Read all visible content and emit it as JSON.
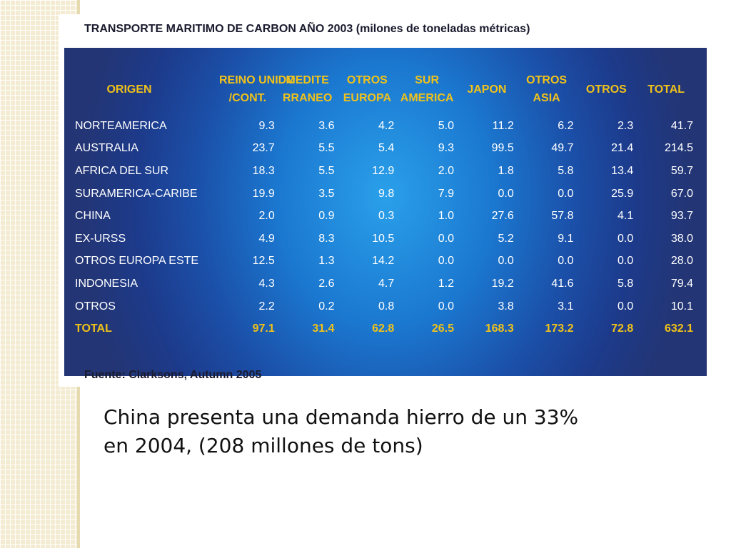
{
  "figure": {
    "title": "TRANSPORTE MARITIMO DE CARBON AÑO 2003 (milones de toneladas métricas)",
    "source": "Fuente: Clarksons, Autumn 2005"
  },
  "table": {
    "headers": [
      [
        "ORIGEN"
      ],
      [
        "REINO UNIDO",
        "/CONT."
      ],
      [
        "MEDITE",
        "RRANEO"
      ],
      [
        "OTROS",
        "EUROPA"
      ],
      [
        "SUR",
        "AMERICA"
      ],
      [
        "JAPON"
      ],
      [
        "OTROS",
        "ASIA"
      ],
      [
        "OTROS"
      ],
      [
        "TOTAL"
      ]
    ],
    "rows": [
      [
        "NORTEAMERICA",
        "9.3",
        "3.6",
        "4.2",
        "5.0",
        "11.2",
        "6.2",
        "2.3",
        "41.7"
      ],
      [
        "AUSTRALIA",
        "23.7",
        "5.5",
        "5.4",
        "9.3",
        "99.5",
        "49.7",
        "21.4",
        "214.5"
      ],
      [
        "AFRICA DEL SUR",
        "18.3",
        "5.5",
        "12.9",
        "2.0",
        "1.8",
        "5.8",
        "13.4",
        "59.7"
      ],
      [
        "SURAMERICA-CARIBE",
        "19.9",
        "3.5",
        "9.8",
        "7.9",
        "0.0",
        "0.0",
        "25.9",
        "67.0"
      ],
      [
        "CHINA",
        "2.0",
        "0.9",
        "0.3",
        "1.0",
        "27.6",
        "57.8",
        "4.1",
        "93.7"
      ],
      [
        "EX-URSS",
        "4.9",
        "8.3",
        "10.5",
        "0.0",
        "5.2",
        "9.1",
        "0.0",
        "38.0"
      ],
      [
        "OTROS EUROPA ESTE",
        "12.5",
        "1.3",
        "14.2",
        "0.0",
        "0.0",
        "0.0",
        "0.0",
        "28.0"
      ],
      [
        "INDONESIA",
        "4.3",
        "2.6",
        "4.7",
        "1.2",
        "19.2",
        "41.6",
        "5.8",
        "79.4"
      ],
      [
        "OTROS",
        "2.2",
        "0.2",
        "0.8",
        "0.0",
        "3.8",
        "3.1",
        "0.0",
        "10.1"
      ],
      [
        "TOTAL",
        "97.1",
        "31.4",
        "62.8",
        "26.5",
        "168.3",
        "173.2",
        "72.8",
        "632.1"
      ]
    ]
  },
  "body": {
    "lines": [
      "China presenta una demanda hierro de un 33%",
      "en 2004, (208 millones de tons)"
    ]
  },
  "colors": {
    "header_text": "#f0c21a",
    "cell_text": "#ffffff",
    "panel_center": "#2aa0ea",
    "panel_edge": "#233574"
  }
}
